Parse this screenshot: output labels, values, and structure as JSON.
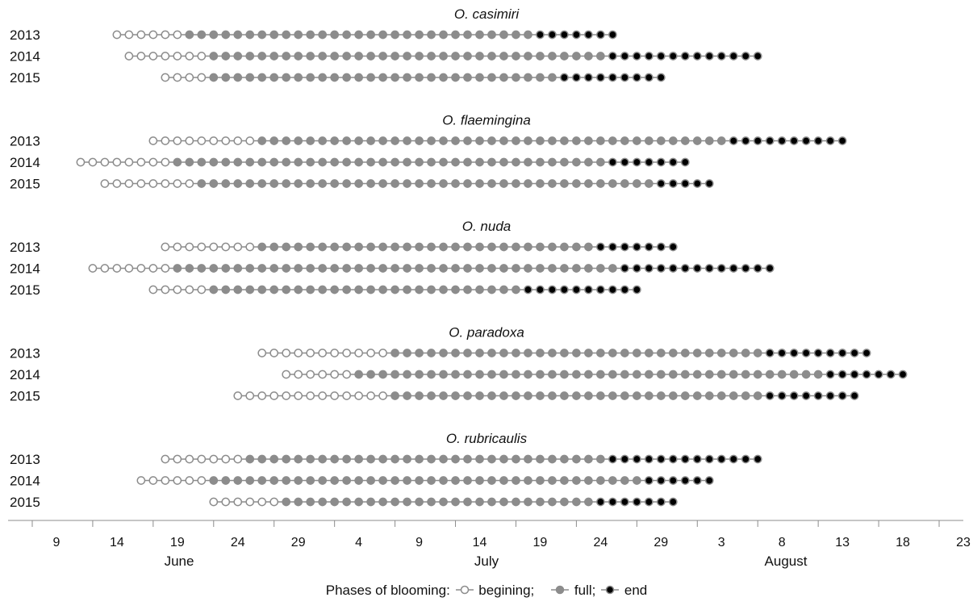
{
  "chart_data": {
    "type": "scatter",
    "x_axis": {
      "start_date": "06-05",
      "end_date": "08-23",
      "tick_labels": [
        "9",
        "14",
        "19",
        "24",
        "29",
        "4",
        "9",
        "14",
        "19",
        "24",
        "29",
        "3",
        "8",
        "13",
        "18",
        "23"
      ],
      "months": [
        "June",
        "July",
        "August"
      ]
    },
    "legend": {
      "prefix": "Phases of blooming:",
      "items": [
        {
          "label": "begining;",
          "phase": "beginning",
          "fill": "#ffffff",
          "stroke": "#8c8c8c"
        },
        {
          "label": "full;",
          "phase": "full",
          "fill": "#8c8c8c",
          "stroke": "#8c8c8c"
        },
        {
          "label": "end",
          "phase": "end",
          "fill": "#000000",
          "stroke": "#8c8c8c"
        }
      ]
    },
    "species": [
      {
        "name": "O. casimiri",
        "years": [
          {
            "year": "2013",
            "begin_start": "06-14",
            "full_start": "06-20",
            "end_start": "07-19",
            "end_finish": "07-25"
          },
          {
            "year": "2014",
            "begin_start": "06-15",
            "full_start": "06-22",
            "end_start": "07-25",
            "end_finish": "08-06"
          },
          {
            "year": "2015",
            "begin_start": "06-18",
            "full_start": "06-22",
            "end_start": "07-21",
            "end_finish": "07-29"
          }
        ]
      },
      {
        "name": "O. flaemingina",
        "years": [
          {
            "year": "2013",
            "begin_start": "06-17",
            "full_start": "06-26",
            "end_start": "08-04",
            "end_finish": "08-13"
          },
          {
            "year": "2014",
            "begin_start": "06-11",
            "full_start": "06-19",
            "end_start": "07-25",
            "end_finish": "07-31"
          },
          {
            "year": "2015",
            "begin_start": "06-13",
            "full_start": "06-21",
            "end_start": "07-29",
            "end_finish": "08-02"
          }
        ]
      },
      {
        "name": "O. nuda",
        "years": [
          {
            "year": "2013",
            "begin_start": "06-18",
            "full_start": "06-26",
            "end_start": "07-24",
            "end_finish": "07-30"
          },
          {
            "year": "2014",
            "begin_start": "06-12",
            "full_start": "06-19",
            "end_start": "07-26",
            "end_finish": "08-07"
          },
          {
            "year": "2015",
            "begin_start": "06-17",
            "full_start": "06-22",
            "end_start": "07-18",
            "end_finish": "07-27"
          }
        ]
      },
      {
        "name": "O. paradoxa",
        "years": [
          {
            "year": "2013",
            "begin_start": "06-26",
            "full_start": "07-07",
            "end_start": "08-07",
            "end_finish": "08-15"
          },
          {
            "year": "2014",
            "begin_start": "06-28",
            "full_start": "07-04",
            "end_start": "08-12",
            "end_finish": "08-18"
          },
          {
            "year": "2015",
            "begin_start": "06-24",
            "full_start": "07-07",
            "end_start": "08-07",
            "end_finish": "08-14"
          }
        ]
      },
      {
        "name": "O. rubricaulis",
        "years": [
          {
            "year": "2013",
            "begin_start": "06-18",
            "full_start": "06-25",
            "end_start": "07-25",
            "end_finish": "08-06"
          },
          {
            "year": "2014",
            "begin_start": "06-16",
            "full_start": "06-22",
            "end_start": "07-28",
            "end_finish": "08-02"
          },
          {
            "year": "2015",
            "begin_start": "06-22",
            "full_start": "06-28",
            "end_start": "07-24",
            "end_finish": "07-30"
          }
        ]
      }
    ]
  }
}
